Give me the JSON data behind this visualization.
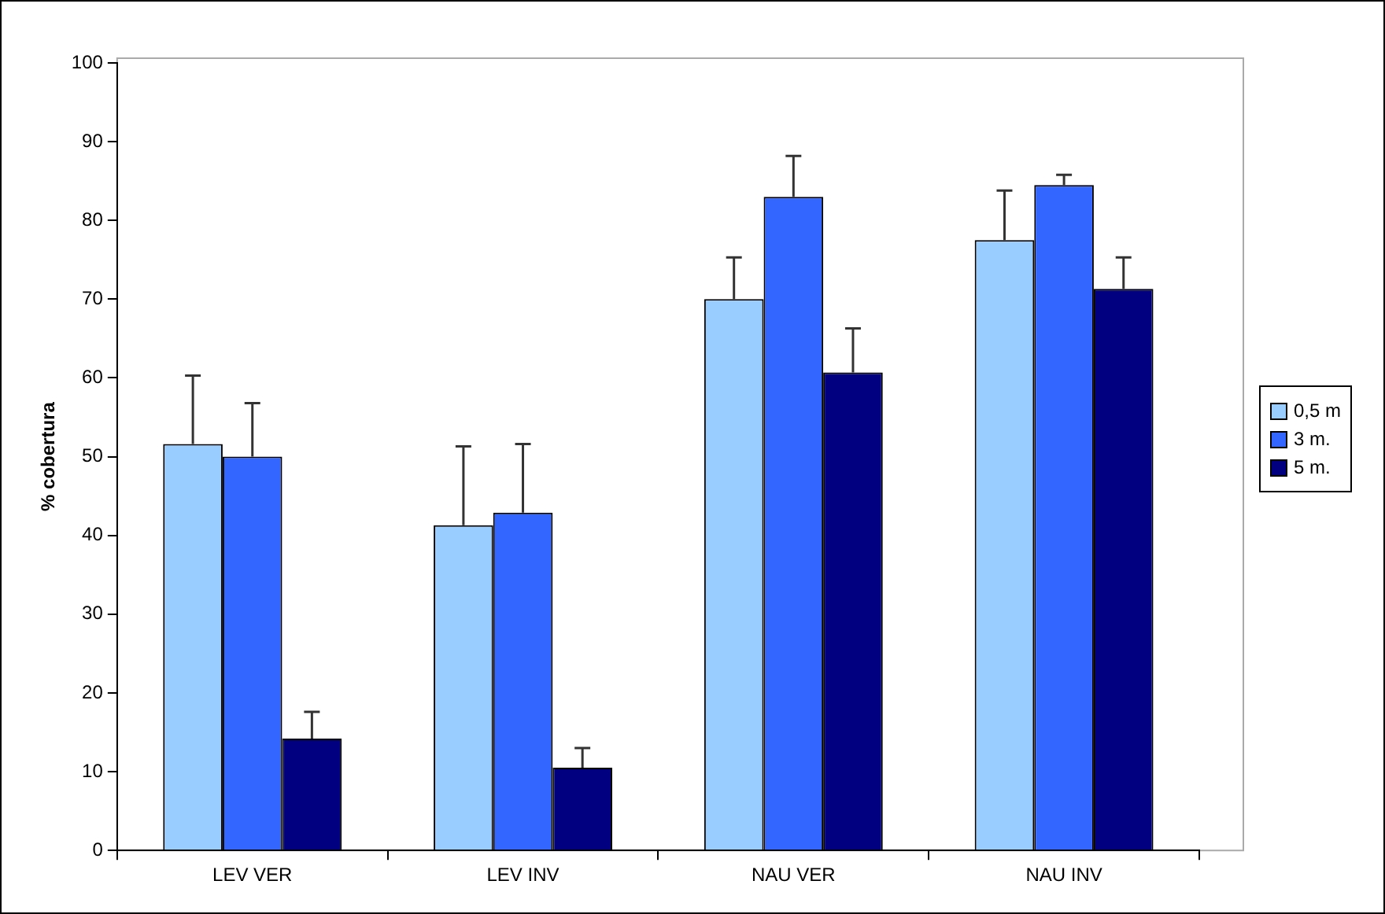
{
  "chart_data": {
    "type": "bar",
    "ylabel": "% cobertura",
    "categories": [
      "LEV VER",
      "LEV INV",
      "NAU VER",
      "NAU INV"
    ],
    "series": [
      {
        "name": "0,5 m",
        "color": "#99ccff",
        "values": [
          51.6,
          41.3,
          70,
          77.5
        ],
        "errors": [
          [
            51.6,
            60.3
          ],
          [
            41.3,
            51.3
          ],
          [
            70,
            75.3
          ],
          [
            77.5,
            83.8
          ]
        ]
      },
      {
        "name": "3 m.",
        "color": "#3366ff",
        "values": [
          50,
          42.9,
          83,
          84.5
        ],
        "errors": [
          [
            50,
            56.8
          ],
          [
            42.9,
            51.6
          ],
          [
            83,
            88.2
          ],
          [
            84.5,
            85.8
          ]
        ]
      },
      {
        "name": "5 m.",
        "color": "#000080",
        "values": [
          14.2,
          10.5,
          60.7,
          71.3
        ],
        "errors": [
          [
            14.2,
            17.6
          ],
          [
            10.5,
            13
          ],
          [
            60.7,
            66.3
          ],
          [
            71.3,
            75.3
          ]
        ]
      }
    ],
    "ylim": [
      0,
      100
    ],
    "yticks": [
      0,
      10,
      20,
      30,
      40,
      50,
      60,
      70,
      80,
      90,
      100
    ],
    "grid": false,
    "legend": "right"
  }
}
